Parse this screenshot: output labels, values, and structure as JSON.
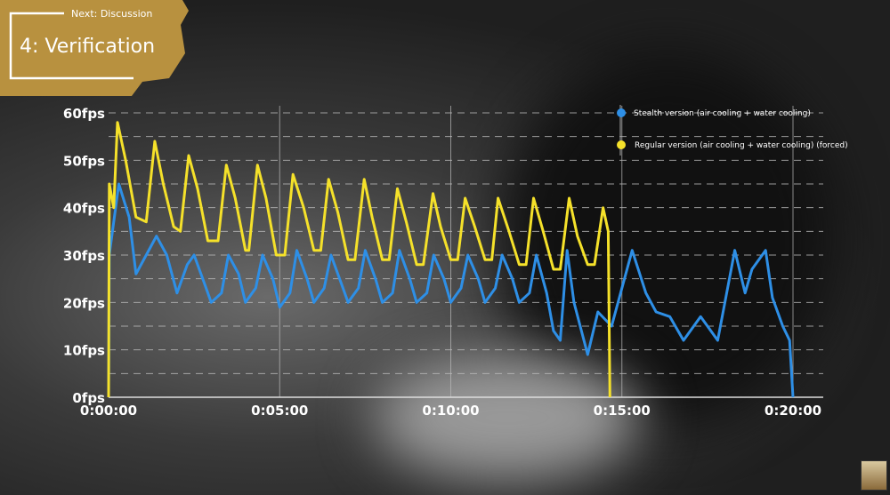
{
  "overlay": {
    "next_label": "Next: Discussion",
    "section_title": "4: Verification"
  },
  "chart_data": {
    "type": "line",
    "title": "",
    "xlabel": "",
    "ylabel": "",
    "x_unit": "minutes",
    "xlim": [
      0,
      20
    ],
    "ylim": [
      0,
      60
    ],
    "x_tick_labels": [
      "0:00:00",
      "0:05:00",
      "0:10:00",
      "0:15:00",
      "0:20:00"
    ],
    "x_ticks": [
      0,
      5,
      10,
      15,
      20
    ],
    "y_tick_labels": [
      "0fps",
      "10fps",
      "20fps",
      "30fps",
      "40fps",
      "50fps",
      "60fps"
    ],
    "y_ticks": [
      0,
      10,
      20,
      30,
      40,
      50,
      60
    ],
    "grid": true,
    "legend_position": "top-right",
    "series": [
      {
        "name": "Stealth version (air cooling + water cooling)",
        "color": "#2e8fe6",
        "points": [
          [
            0,
            0
          ],
          [
            0.02,
            30
          ],
          [
            0.3,
            45
          ],
          [
            0.6,
            38
          ],
          [
            0.8,
            26
          ],
          [
            1.1,
            30
          ],
          [
            1.4,
            34
          ],
          [
            1.7,
            30
          ],
          [
            2.0,
            22
          ],
          [
            2.3,
            28
          ],
          [
            2.5,
            30
          ],
          [
            2.8,
            24
          ],
          [
            3.0,
            20
          ],
          [
            3.3,
            22
          ],
          [
            3.5,
            30
          ],
          [
            3.8,
            26
          ],
          [
            4.0,
            20
          ],
          [
            4.3,
            23
          ],
          [
            4.5,
            30
          ],
          [
            4.8,
            25
          ],
          [
            5.0,
            19
          ],
          [
            5.3,
            22
          ],
          [
            5.5,
            31
          ],
          [
            5.8,
            25
          ],
          [
            6.0,
            20
          ],
          [
            6.3,
            23
          ],
          [
            6.5,
            30
          ],
          [
            6.8,
            24
          ],
          [
            7.0,
            20
          ],
          [
            7.3,
            23
          ],
          [
            7.5,
            31
          ],
          [
            7.8,
            25
          ],
          [
            8.0,
            20
          ],
          [
            8.3,
            22
          ],
          [
            8.5,
            31
          ],
          [
            8.8,
            25
          ],
          [
            9.0,
            20
          ],
          [
            9.3,
            22
          ],
          [
            9.5,
            30
          ],
          [
            9.8,
            25
          ],
          [
            10.0,
            20
          ],
          [
            10.3,
            23
          ],
          [
            10.5,
            30
          ],
          [
            10.8,
            25
          ],
          [
            11.0,
            20
          ],
          [
            11.3,
            23
          ],
          [
            11.5,
            30
          ],
          [
            11.8,
            25
          ],
          [
            12.0,
            20
          ],
          [
            12.3,
            22
          ],
          [
            12.5,
            30
          ],
          [
            12.8,
            22
          ],
          [
            13.0,
            14
          ],
          [
            13.2,
            12
          ],
          [
            13.4,
            31
          ],
          [
            13.6,
            20
          ],
          [
            14.0,
            9
          ],
          [
            14.3,
            18
          ],
          [
            14.7,
            15
          ],
          [
            15.3,
            31
          ],
          [
            15.7,
            22
          ],
          [
            16.0,
            18
          ],
          [
            16.4,
            17
          ],
          [
            16.8,
            12
          ],
          [
            17.3,
            17
          ],
          [
            17.8,
            12
          ],
          [
            18.3,
            31
          ],
          [
            18.6,
            22
          ],
          [
            18.8,
            27
          ],
          [
            19.2,
            31
          ],
          [
            19.4,
            21
          ],
          [
            19.7,
            15
          ],
          [
            19.9,
            12
          ],
          [
            20.0,
            0
          ]
        ]
      },
      {
        "name": "Regular version (air cooling + water cooling) (forced)",
        "color": "#f5e12a",
        "points": [
          [
            0,
            0
          ],
          [
            0.02,
            45
          ],
          [
            0.15,
            40
          ],
          [
            0.26,
            58
          ],
          [
            0.5,
            50
          ],
          [
            0.8,
            38
          ],
          [
            1.1,
            37
          ],
          [
            1.35,
            54
          ],
          [
            1.6,
            45
          ],
          [
            1.9,
            36
          ],
          [
            2.1,
            35
          ],
          [
            2.34,
            51
          ],
          [
            2.6,
            44
          ],
          [
            2.9,
            33
          ],
          [
            3.2,
            33
          ],
          [
            3.44,
            49
          ],
          [
            3.7,
            42
          ],
          [
            4.0,
            31
          ],
          [
            4.1,
            31
          ],
          [
            4.35,
            49
          ],
          [
            4.6,
            42
          ],
          [
            4.9,
            30
          ],
          [
            5.15,
            30
          ],
          [
            5.39,
            47
          ],
          [
            5.7,
            40
          ],
          [
            6.0,
            31
          ],
          [
            6.2,
            31
          ],
          [
            6.43,
            46
          ],
          [
            6.7,
            39
          ],
          [
            7.0,
            29
          ],
          [
            7.2,
            29
          ],
          [
            7.47,
            46
          ],
          [
            7.7,
            38
          ],
          [
            8.0,
            29
          ],
          [
            8.2,
            29
          ],
          [
            8.44,
            44
          ],
          [
            8.7,
            37
          ],
          [
            9.0,
            28
          ],
          [
            9.2,
            28
          ],
          [
            9.48,
            43
          ],
          [
            9.7,
            36
          ],
          [
            10.0,
            29
          ],
          [
            10.2,
            29
          ],
          [
            10.42,
            42
          ],
          [
            10.7,
            36
          ],
          [
            11.0,
            29
          ],
          [
            11.2,
            29
          ],
          [
            11.38,
            42
          ],
          [
            11.7,
            35
          ],
          [
            12.0,
            28
          ],
          [
            12.2,
            28
          ],
          [
            12.42,
            42
          ],
          [
            12.7,
            35
          ],
          [
            13.0,
            27
          ],
          [
            13.2,
            27
          ],
          [
            13.46,
            42
          ],
          [
            13.7,
            34
          ],
          [
            14.0,
            28
          ],
          [
            14.2,
            28
          ],
          [
            14.45,
            40
          ],
          [
            14.6,
            35
          ],
          [
            14.65,
            0
          ]
        ]
      }
    ]
  }
}
